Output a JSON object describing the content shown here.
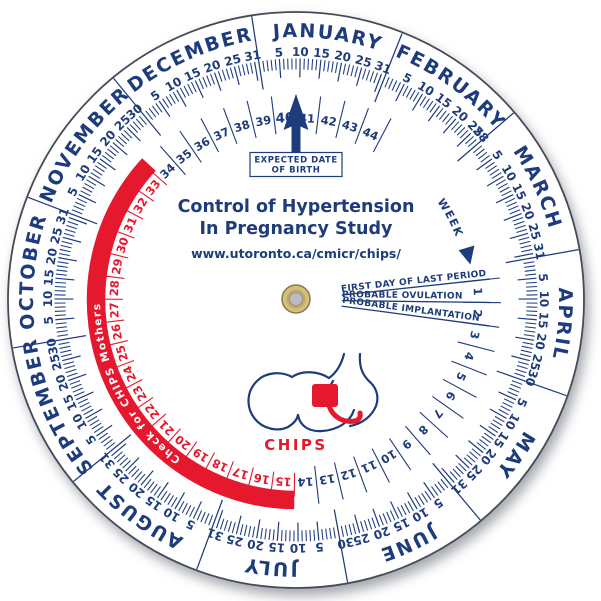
{
  "colors": {
    "navy": "#1e3c7c",
    "red": "#e5182e",
    "white": "#ffffff",
    "disc_edge": "#464b57",
    "grommet_gold": "#d2c080",
    "grommet_gold_dark": "#8a7744",
    "grommet_gold_mid": "#c2aa5e",
    "grommet_inner": "#bcbcc4",
    "grommet_inner_edge": "#90909a"
  },
  "wheel": {
    "title_line1": "Control of Hypertension",
    "title_line2": "In Pregnancy Study",
    "url": "www.utoronto.ca/cmicr/chips/",
    "edd_label_line1": "EXPECTED DATE",
    "edd_label_line2": "OF BIRTH",
    "week_pointer_label": "WEEK",
    "annotations": [
      "FIRST DAY OF LAST PERIOD",
      "PROBABLE OVULATION",
      "PROBABLE IMPLANTATION"
    ],
    "band_label": "Check for CHIPS Mothers",
    "logo_label": "CHIPS"
  },
  "calendar": {
    "top_day_of_year": 9,
    "date_at_top": "January 9",
    "months": [
      {
        "name": "JANUARY",
        "days": 31,
        "day_labels": [
          5,
          10,
          15,
          20,
          25,
          31
        ]
      },
      {
        "name": "FEBRUARY",
        "days": 28,
        "day_labels": [
          5,
          10,
          15,
          20,
          25,
          28
        ]
      },
      {
        "name": "MARCH",
        "days": 31,
        "day_labels": [
          5,
          10,
          15,
          20,
          25,
          31
        ]
      },
      {
        "name": "APRIL",
        "days": 30,
        "day_labels": [
          5,
          10,
          15,
          20,
          25,
          30
        ]
      },
      {
        "name": "MAY",
        "days": 31,
        "day_labels": [
          5,
          10,
          15,
          20,
          25,
          31
        ]
      },
      {
        "name": "JUNE",
        "days": 30,
        "day_labels": [
          5,
          10,
          15,
          20,
          25,
          30
        ]
      },
      {
        "name": "JULY",
        "days": 31,
        "day_labels": [
          5,
          10,
          15,
          20,
          25,
          31
        ]
      },
      {
        "name": "AUGUST",
        "days": 31,
        "day_labels": [
          5,
          10,
          15,
          20,
          25,
          31
        ]
      },
      {
        "name": "SEPTEMBER",
        "days": 30,
        "day_labels": [
          5,
          10,
          15,
          20,
          25,
          30
        ]
      },
      {
        "name": "OCTOBER",
        "days": 31,
        "day_labels": [
          5,
          10,
          15,
          20,
          25,
          31
        ]
      },
      {
        "name": "NOVEMBER",
        "days": 30,
        "day_labels": [
          5,
          10,
          15,
          20,
          25,
          30
        ]
      },
      {
        "name": "DECEMBER",
        "days": 31,
        "day_labels": [
          5,
          10,
          15,
          20,
          25,
          31
        ]
      }
    ]
  },
  "weeks": {
    "first": 1,
    "last": 44,
    "days_per_week": 7,
    "red_first": 15,
    "red_last": 33,
    "edd_week": 40
  }
}
